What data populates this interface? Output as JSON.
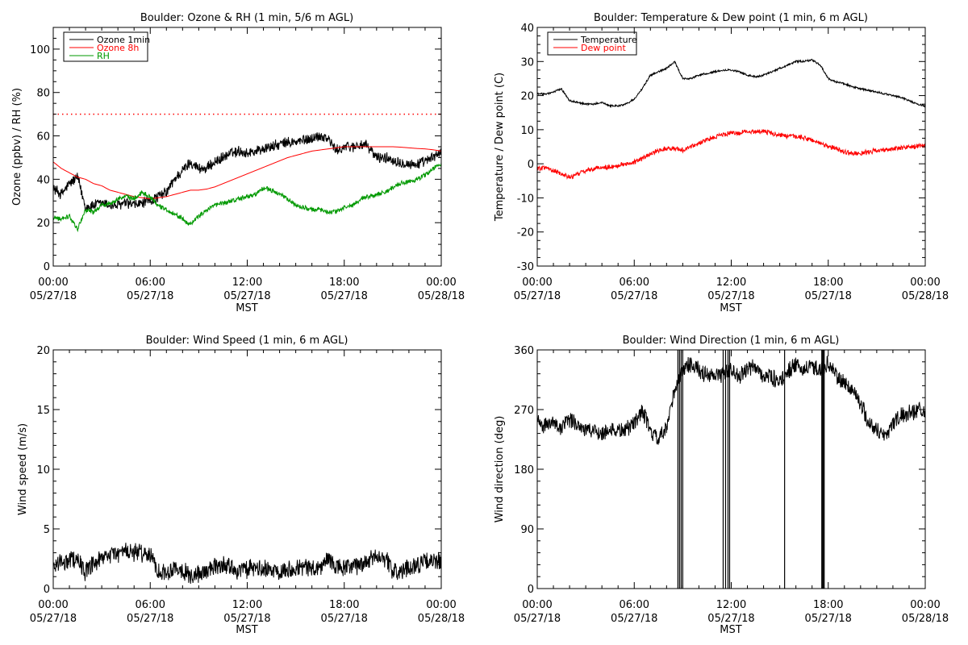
{
  "chart_data": [
    {
      "type": "line",
      "title": "Boulder: Ozone & RH (1 min, 5/6 m AGL)",
      "ylabel": "Ozone (ppbv) / RH (%)",
      "xlabel": "",
      "xlim": [
        0,
        24
      ],
      "ylim": [
        0,
        110
      ],
      "yticks": [
        0,
        20,
        40,
        60,
        80,
        100
      ],
      "xticks": [
        {
          "time": "00:00",
          "date": "05/27/18"
        },
        {
          "time": "06:00",
          "date": "05/27/18"
        },
        {
          "time": "12:00",
          "date": "05/27/18"
        },
        {
          "time": "18:00",
          "date": "05/27/18"
        },
        {
          "time": "00:00",
          "date": "05/28/18"
        }
      ],
      "legend": "top-left",
      "reference_line": {
        "y": 70,
        "style": "dotted",
        "color": "#ff0000"
      },
      "x": [
        0,
        0.5,
        1,
        1.5,
        2,
        2.5,
        3,
        3.5,
        4,
        4.5,
        5,
        5.5,
        6,
        6.5,
        7,
        7.5,
        8,
        8.5,
        9,
        9.5,
        10,
        10.5,
        11,
        11.5,
        12,
        12.5,
        13,
        13.5,
        14,
        14.5,
        15,
        15.5,
        16,
        16.5,
        17,
        17.5,
        18,
        18.5,
        19,
        19.5,
        20,
        20.5,
        21,
        21.5,
        22,
        22.5,
        23,
        23.5,
        24
      ],
      "series": [
        {
          "name": "Ozone 1min",
          "color": "#000000",
          "noise": 1.8,
          "values": [
            36,
            33,
            38,
            41,
            27,
            28,
            29,
            28,
            28,
            29,
            28,
            29,
            30,
            32,
            34,
            40,
            44,
            48,
            45,
            45,
            48,
            50,
            52,
            53,
            52,
            53,
            54,
            55,
            56,
            57,
            57,
            58,
            59,
            60,
            59,
            53,
            55,
            55,
            56,
            55,
            50,
            50,
            49,
            48,
            47,
            47,
            48,
            50,
            53
          ]
        },
        {
          "name": "Ozone 8h",
          "color": "#ff0000",
          "noise": 0,
          "values": [
            48,
            45,
            43,
            41,
            40,
            38,
            37,
            35,
            34,
            33,
            32,
            31.5,
            31,
            31.5,
            32,
            33,
            34,
            35,
            35,
            35.5,
            36.5,
            38,
            39.5,
            41,
            42.5,
            44,
            45.5,
            47,
            48.5,
            50,
            51,
            52,
            53,
            53.5,
            54,
            54.5,
            55,
            55,
            55,
            55,
            55,
            55,
            55,
            54.8,
            54.5,
            54.2,
            54,
            53.6,
            53
          ]
        },
        {
          "name": "RH",
          "color": "#009900",
          "noise": 0.8,
          "values": [
            22,
            22,
            23,
            17,
            26,
            25,
            28,
            29,
            31,
            32,
            31,
            34,
            32,
            28,
            26,
            24,
            22,
            19,
            23,
            26,
            28,
            29,
            30,
            31,
            32,
            33,
            36,
            35,
            33,
            31,
            28,
            27,
            26,
            26,
            25,
            25,
            27,
            28,
            31,
            32,
            33,
            34,
            36,
            38,
            39,
            40,
            42,
            45,
            47
          ]
        }
      ]
    },
    {
      "type": "line",
      "title": "Boulder: Temperature & Dew point (1 min, 6 m AGL)",
      "ylabel": "Temperature / Dew point (C)",
      "xlabel": "MST",
      "xlim": [
        0,
        24
      ],
      "ylim": [
        -30,
        40
      ],
      "yticks": [
        -30,
        -20,
        -10,
        0,
        10,
        20,
        30,
        40
      ],
      "xticks": [
        {
          "time": "00:00",
          "date": "05/27/18"
        },
        {
          "time": "06:00",
          "date": "05/27/18"
        },
        {
          "time": "12:00",
          "date": "05/27/18"
        },
        {
          "time": "18:00",
          "date": "05/27/18"
        },
        {
          "time": "00:00",
          "date": "05/28/18"
        }
      ],
      "legend": "top-left",
      "x": [
        0,
        0.5,
        1,
        1.5,
        2,
        2.5,
        3,
        3.5,
        4,
        4.5,
        5,
        5.5,
        6,
        6.5,
        7,
        7.5,
        8,
        8.5,
        9,
        9.5,
        10,
        10.5,
        11,
        11.5,
        12,
        12.5,
        13,
        13.5,
        14,
        14.5,
        15,
        15.5,
        16,
        16.5,
        17,
        17.5,
        18,
        18.5,
        19,
        19.5,
        20,
        20.5,
        21,
        21.5,
        22,
        22.5,
        23,
        23.5,
        24
      ],
      "series": [
        {
          "name": "Temperature",
          "color": "#000000",
          "noise": 0.2,
          "values": [
            20.5,
            20.5,
            21,
            22,
            18.5,
            18,
            17.5,
            17.5,
            18,
            17,
            17,
            17.5,
            19,
            22,
            26,
            27,
            28,
            30,
            25,
            25,
            26,
            26.5,
            27,
            27.5,
            27.5,
            27,
            26,
            25.5,
            26,
            27,
            28,
            29,
            30,
            30,
            30.5,
            29,
            25,
            24,
            23.5,
            22.5,
            22,
            21.5,
            21,
            20.5,
            20,
            19.5,
            18.5,
            17.5,
            17
          ]
        },
        {
          "name": "Dew point",
          "color": "#ff0000",
          "noise": 0.5,
          "values": [
            -1.5,
            -1,
            -2,
            -3,
            -4,
            -3,
            -2,
            -1.5,
            -1,
            -1,
            -0.5,
            0,
            0.5,
            1.5,
            3,
            4,
            4.5,
            4.5,
            4,
            5,
            6,
            7,
            8,
            8.5,
            9,
            9,
            9.5,
            9.5,
            9.5,
            9,
            8.5,
            8,
            8,
            7.5,
            7,
            6,
            5,
            4.5,
            3.5,
            3,
            3,
            3.5,
            4,
            4,
            4.5,
            4.5,
            5,
            5,
            5.5
          ]
        }
      ]
    },
    {
      "type": "line",
      "title": "Boulder: Wind Speed (1 min, 6 m AGL)",
      "ylabel": "Wind speed (m/s)",
      "xlabel": "MST",
      "xlim": [
        0,
        24
      ],
      "ylim": [
        0,
        20
      ],
      "yticks": [
        0,
        5,
        10,
        15,
        20
      ],
      "xticks": [
        {
          "time": "00:00",
          "date": "05/27/18"
        },
        {
          "time": "06:00",
          "date": "05/27/18"
        },
        {
          "time": "12:00",
          "date": "05/27/18"
        },
        {
          "time": "18:00",
          "date": "05/27/18"
        },
        {
          "time": "00:00",
          "date": "05/28/18"
        }
      ],
      "x": [
        0,
        0.5,
        1,
        1.5,
        2,
        2.5,
        3,
        3.5,
        4,
        4.5,
        5,
        5.5,
        6,
        6.5,
        7,
        7.5,
        8,
        8.5,
        9,
        9.5,
        10,
        10.5,
        11,
        11.5,
        12,
        12.5,
        13,
        13.5,
        14,
        14.5,
        15,
        15.5,
        16,
        16.5,
        17,
        17.5,
        18,
        18.5,
        19,
        19.5,
        20,
        20.5,
        21,
        21.5,
        22,
        22.5,
        23,
        23.5,
        24
      ],
      "series": [
        {
          "name": "",
          "color": "#000000",
          "noise": 0.55,
          "values": [
            2,
            2.2,
            2.4,
            2.6,
            1.3,
            2,
            2.4,
            2.8,
            3,
            3.1,
            3,
            3,
            2.8,
            1.5,
            1.3,
            1.8,
            1.6,
            1,
            1.2,
            1.5,
            1.8,
            2,
            1.8,
            1.5,
            1.6,
            1.7,
            1.6,
            1.5,
            1.6,
            1.6,
            1.8,
            1.8,
            1.7,
            1.7,
            2.5,
            1.8,
            1.7,
            1.8,
            2,
            2.3,
            2.8,
            2.6,
            1.5,
            1.3,
            1.8,
            2,
            2.2,
            2.3,
            2.3
          ]
        }
      ]
    },
    {
      "type": "line",
      "title": "Boulder: Wind Direction (1 min, 6 m AGL)",
      "ylabel": "Wind direction (deg)",
      "xlabel": "MST",
      "xlim": [
        0,
        24
      ],
      "ylim": [
        0,
        360
      ],
      "yticks": [
        0,
        90,
        180,
        270,
        360
      ],
      "xticks": [
        {
          "time": "00:00",
          "date": "05/27/18"
        },
        {
          "time": "06:00",
          "date": "05/27/18"
        },
        {
          "time": "12:00",
          "date": "05/27/18"
        },
        {
          "time": "18:00",
          "date": "05/27/18"
        },
        {
          "time": "00:00",
          "date": "05/28/18"
        }
      ],
      "x": [
        0,
        0.5,
        1,
        1.5,
        2,
        2.5,
        3,
        3.5,
        4,
        4.5,
        5,
        5.5,
        6,
        6.5,
        7,
        7.5,
        8,
        8.5,
        9,
        9.5,
        10,
        10.5,
        11,
        11.5,
        12,
        12.5,
        13,
        13.5,
        14,
        14.5,
        15,
        15.5,
        16,
        16.5,
        17,
        17.5,
        18,
        18.5,
        19,
        19.5,
        20,
        20.5,
        21,
        21.5,
        22,
        22.5,
        23,
        23.5,
        24
      ],
      "series": [
        {
          "name": "",
          "color": "#000000",
          "noise": 9,
          "values": [
            250,
            245,
            250,
            240,
            255,
            248,
            240,
            238,
            235,
            240,
            238,
            240,
            250,
            270,
            235,
            225,
            240,
            300,
            330,
            340,
            330,
            320,
            320,
            325,
            330,
            320,
            330,
            335,
            320,
            320,
            310,
            330,
            335,
            330,
            335,
            330,
            340,
            320,
            310,
            300,
            280,
            250,
            240,
            230,
            250,
            260,
            265,
            270,
            270
          ]
        }
      ],
      "drops_to_zero": [
        8.7,
        8.8,
        8.9,
        9.0,
        11.5,
        11.65,
        11.8,
        11.9,
        15.3,
        17.6,
        17.65,
        17.7,
        17.75
      ]
    }
  ]
}
